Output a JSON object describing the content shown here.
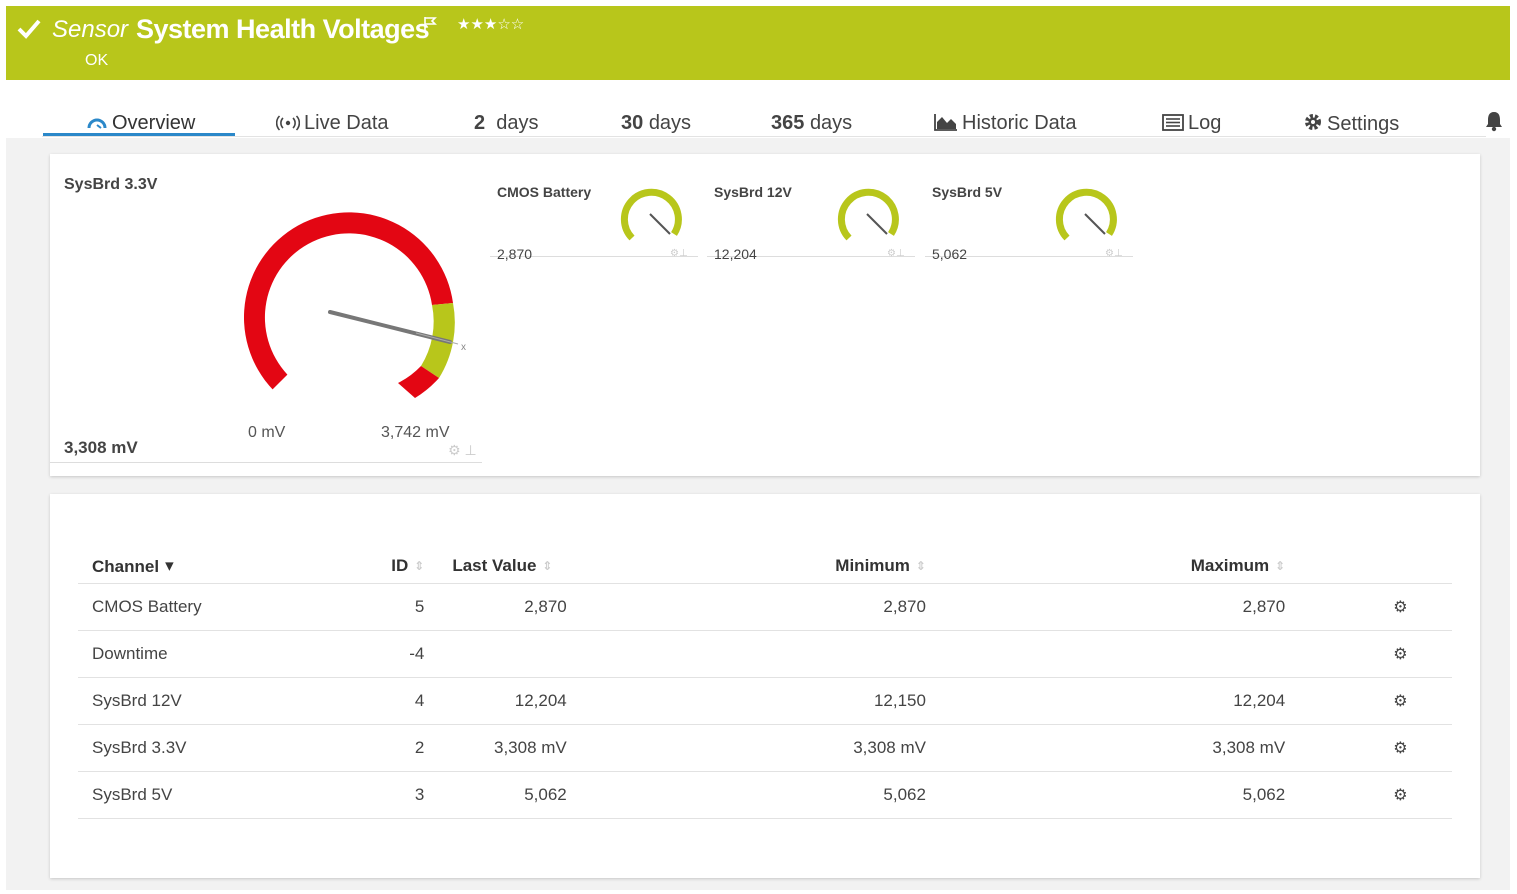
{
  "header": {
    "prefix": "Sensor",
    "name": "System Health Voltages",
    "status": "OK",
    "stars": "★★★☆☆",
    "color": "#b8c61b"
  },
  "tabs": [
    {
      "label": "Overview",
      "icon": "gauge-icon"
    },
    {
      "label": "Live Data",
      "icon": "broadcast-icon"
    },
    {
      "num": "2",
      "label": "days"
    },
    {
      "num": "30",
      "label": "days"
    },
    {
      "num": "365",
      "label": "days"
    },
    {
      "label": "Historic Data",
      "icon": "area-chart-icon"
    },
    {
      "label": "Log",
      "icon": "log-icon"
    },
    {
      "label": "Settings",
      "icon": "gear-icon"
    }
  ],
  "main_gauge": {
    "title": "SysBrd 3.3V",
    "value": "3,308 mV",
    "min_label": "0 mV",
    "max_label": "3,742 mV"
  },
  "mini_gauges": [
    {
      "title": "CMOS Battery",
      "value": "2,870"
    },
    {
      "title": "SysBrd 12V",
      "value": "12,204"
    },
    {
      "title": "SysBrd 5V",
      "value": "5,062"
    }
  ],
  "table": {
    "columns": [
      "Channel",
      "ID",
      "Last Value",
      "Minimum",
      "Maximum"
    ],
    "rows": [
      {
        "channel": "CMOS Battery",
        "id": "5",
        "last": "2,870",
        "min": "2,870",
        "max": "2,870"
      },
      {
        "channel": "Downtime",
        "id": "-4",
        "last": "",
        "min": "",
        "max": ""
      },
      {
        "channel": "SysBrd 12V",
        "id": "4",
        "last": "12,204",
        "min": "12,150",
        "max": "12,204"
      },
      {
        "channel": "SysBrd 3.3V",
        "id": "2",
        "last": "3,308 mV",
        "min": "3,308 mV",
        "max": "3,308 mV"
      },
      {
        "channel": "SysBrd 5V",
        "id": "3",
        "last": "5,062",
        "min": "5,062",
        "max": "5,062"
      }
    ]
  }
}
